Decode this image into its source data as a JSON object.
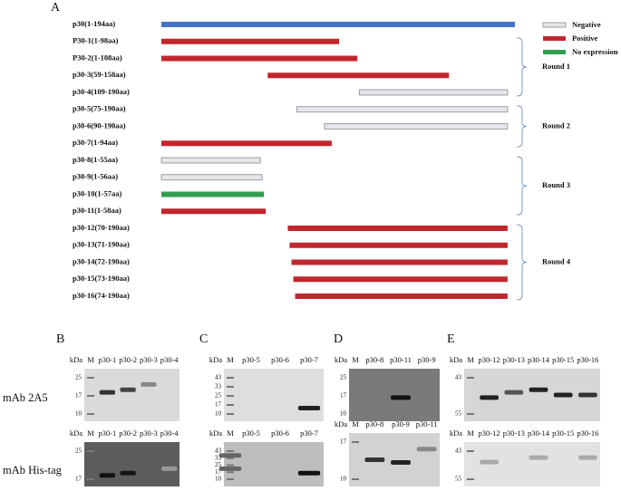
{
  "figure": {
    "panel_a": {
      "letter": "A",
      "fragments": [
        {
          "label": "p30(1-194aa)",
          "color": "#4472c4"
        },
        {
          "label": "P30-1(1-98aa)",
          "color": "#c0272d"
        },
        {
          "label": "P30-2(1-108aa)",
          "color": "#c0272d"
        },
        {
          "label": "p30-3(59-158aa)",
          "color": "#c0272d"
        },
        {
          "label": "p30-4(109-190aa)",
          "color": "#e4e6ec"
        },
        {
          "label": "p30-5(75-190aa)",
          "color": "#e4e6ec"
        },
        {
          "label": "p30-6(90-190aa)",
          "color": "#e4e6ec"
        },
        {
          "label": "p30-7(1-94aa)",
          "color": "#c0272d"
        },
        {
          "label": "p30-8(1-55aa)",
          "color": "#e4e6ec"
        },
        {
          "label": "p30-9(1-56aa)",
          "color": "#e4e6ec"
        },
        {
          "label": "p30-10(1-57aa)",
          "color": "#2f9e4f"
        },
        {
          "label": "p30-11(1-58aa)",
          "color": "#c0272d"
        },
        {
          "label": "p30-12(70-190aa)",
          "color": "#c0272d"
        },
        {
          "label": "p30-13(71-190aa)",
          "color": "#c0272d"
        },
        {
          "label": "p30-14(72-190aa)",
          "color": "#c0272d"
        },
        {
          "label": "p30-15(73-190aa)",
          "color": "#c0272d"
        },
        {
          "label": "p30-16(74-190aa)",
          "color": "#c0272d"
        }
      ],
      "legend": [
        {
          "label": "Negative",
          "color": "#e4e6ec"
        },
        {
          "label": "Positive",
          "color": "#c0272d"
        },
        {
          "label": "No expression",
          "color": "#2f9e4f"
        }
      ],
      "rounds": [
        "Round 1",
        "Round 2",
        "Round 3",
        "Round 4"
      ]
    },
    "blots": {
      "antibodies": [
        "mAb 2A5",
        "mAb His-tag"
      ],
      "panels": [
        {
          "letter": "B",
          "top": {
            "unit": "kDa",
            "lanes": [
              "M",
              "p30-1",
              "p30-2",
              "p30-3",
              "p30-4"
            ],
            "markers": [
              "25",
              "17",
              "10"
            ]
          },
          "bottom": {
            "unit": "kDa",
            "lanes": [
              "M",
              "p30-1",
              "p30-2",
              "p30-3",
              "p30-4"
            ],
            "markers": [
              "25",
              "17"
            ]
          }
        },
        {
          "letter": "C",
          "top": {
            "unit": "kDa",
            "lanes": [
              "M",
              "p30-5",
              "p30-6",
              "p30-7"
            ],
            "markers": [
              "43",
              "33",
              "25",
              "17",
              "10"
            ]
          },
          "bottom": {
            "unit": "kDa",
            "lanes": [
              "M",
              "p30-5",
              "p30-6",
              "p30-7"
            ],
            "markers": [
              "43",
              "33",
              "25",
              "17",
              "10"
            ]
          }
        },
        {
          "letter": "D",
          "top": {
            "unit": "kDa",
            "lanes": [
              "M",
              "p30-8",
              "p30-11",
              "p30-9"
            ],
            "markers": [
              "25",
              "17",
              "10"
            ]
          },
          "bottom": {
            "unit": "kDa",
            "lanes": [
              "M",
              "p30-8",
              "p30-9",
              "p30-11"
            ],
            "markers": [
              "17",
              "10"
            ]
          }
        },
        {
          "letter": "E",
          "top": {
            "unit": "kDa",
            "lanes": [
              "M",
              "p30-12",
              "p30-13",
              "p30-14",
              "p30-15",
              "p30-16"
            ],
            "markers": [
              "43",
              "55"
            ]
          },
          "bottom": {
            "unit": "kDa",
            "lanes": [
              "M",
              "p30-12",
              "p30-13",
              "p30-14",
              "p30-15",
              "p30-16"
            ],
            "markers": [
              "43",
              "55"
            ]
          }
        }
      ]
    }
  }
}
